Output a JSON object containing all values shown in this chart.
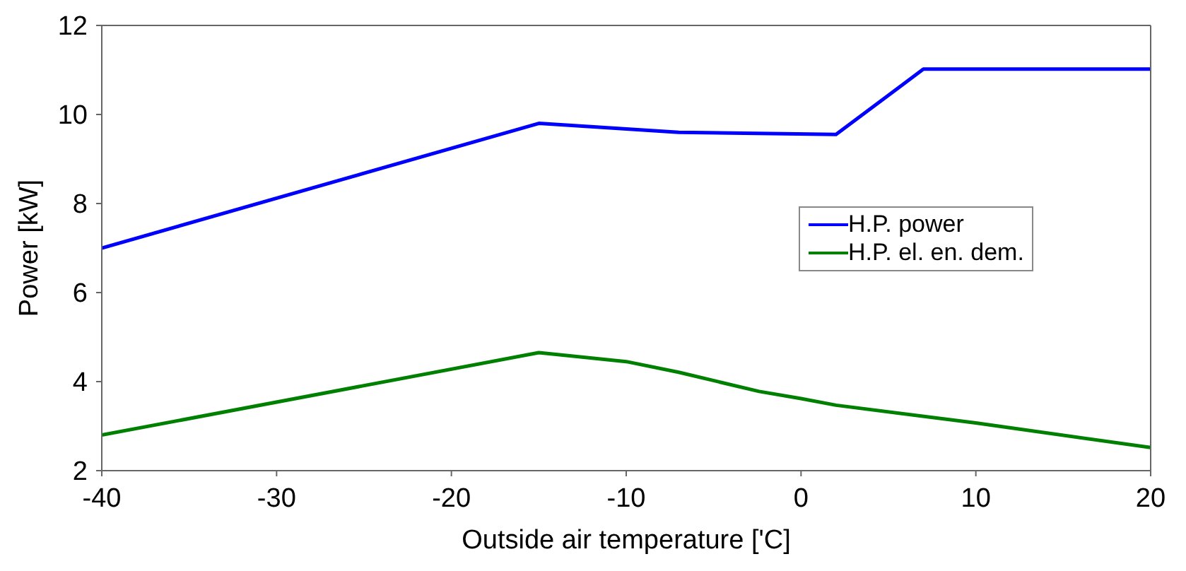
{
  "chart_data": {
    "type": "line",
    "xlabel": "Outside air temperature ['C]",
    "ylabel": "Power [kW]",
    "xlim": [
      -40,
      20
    ],
    "xticks": [
      -40,
      -30,
      -20,
      -10,
      0,
      10,
      20
    ],
    "ylim": [
      2,
      12
    ],
    "yticks": [
      2,
      4,
      6,
      8,
      10,
      12
    ],
    "grid": false,
    "legend": "right",
    "marker": "none",
    "line_style": "solid",
    "series": [
      {
        "name": "H.P. power",
        "color": "#0000ff",
        "x": [
          -40,
          -15,
          -7,
          2,
          7,
          20
        ],
        "values": [
          7.0,
          9.8,
          9.6,
          9.55,
          11.02,
          11.02
        ]
      },
      {
        "name": "H.P. el. en. dem.",
        "color": "#008000",
        "x": [
          -40,
          -15,
          -10,
          -7,
          -2.4,
          0,
          2,
          10,
          20
        ],
        "values": [
          2.8,
          4.65,
          4.45,
          4.21,
          3.78,
          3.62,
          3.47,
          3.07,
          2.52
        ]
      }
    ]
  }
}
